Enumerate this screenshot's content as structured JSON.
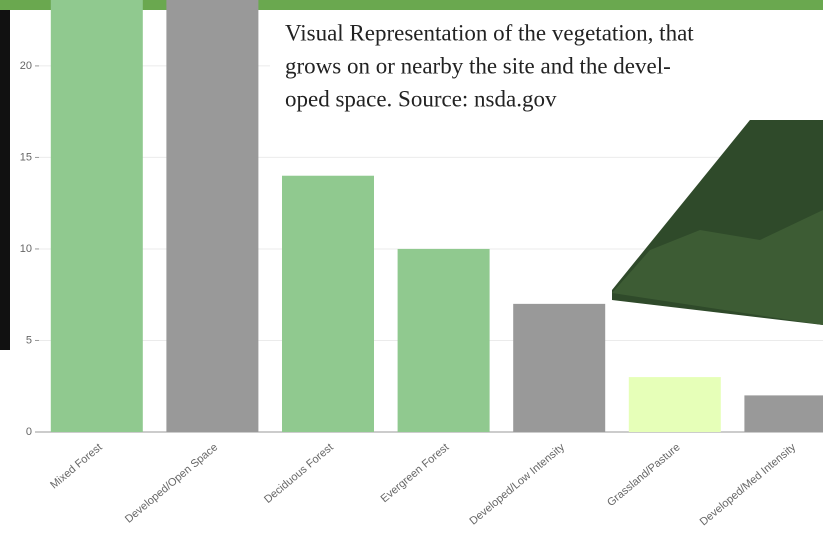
{
  "chart_data": {
    "type": "bar",
    "categories": [
      "Mixed Forest",
      "Developed/Open Space",
      "Deciduous Forest",
      "Evergreen Forest",
      "Developed/Low Intensity",
      "Grassland/Pasture",
      "Developed/Med Intensity"
    ],
    "values": [
      25,
      25,
      14,
      10,
      7,
      3,
      2
    ],
    "colors": [
      "#90c98f",
      "#999999",
      "#90c98f",
      "#90c98f",
      "#999999",
      "#e6ffb8",
      "#999999"
    ],
    "ylim": [
      0,
      23.6
    ],
    "yticks": [
      0,
      5,
      10,
      15,
      20
    ],
    "grid": true,
    "annotation": [
      "Visual Representation of the vegetation, that",
      "grows on or nearby the site and the devel-",
      "oped space. Source: nsda.gov"
    ]
  }
}
